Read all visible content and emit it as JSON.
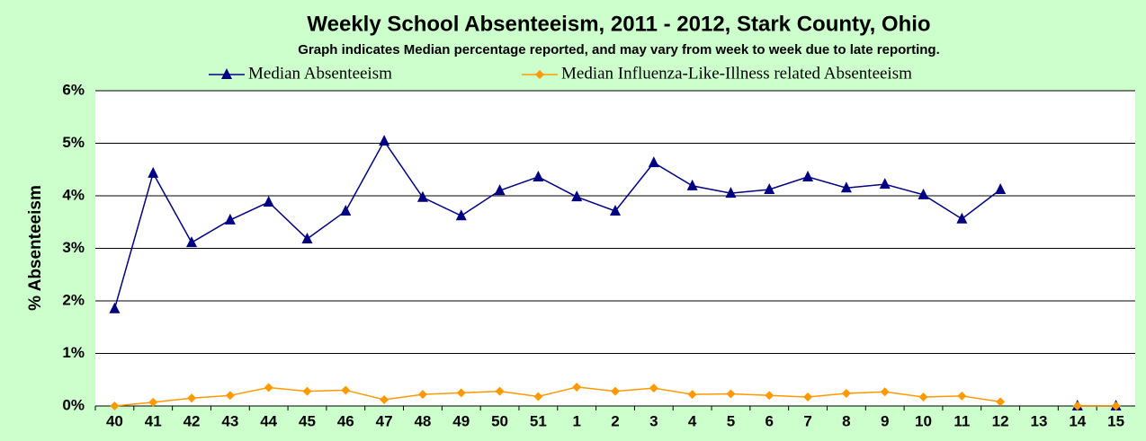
{
  "chart_data": {
    "type": "line",
    "title": "Weekly School Absenteeism, 2011 -  2012, Stark County, Ohio",
    "subtitle": "Graph indicates Median percentage reported, and may vary from week to week due to late reporting.",
    "y_label": "% Absenteeism",
    "categories": [
      "40",
      "41",
      "42",
      "43",
      "44",
      "45",
      "46",
      "47",
      "48",
      "49",
      "50",
      "51",
      "1",
      "2",
      "3",
      "4",
      "5",
      "6",
      "7",
      "8",
      "9",
      "10",
      "11",
      "12",
      "13",
      "14",
      "15"
    ],
    "series": [
      {
        "name": "Median Absenteeism",
        "color": "#000080",
        "marker": "triangle",
        "values": [
          1.85,
          4.43,
          3.11,
          3.54,
          3.88,
          3.18,
          3.71,
          5.04,
          3.97,
          3.62,
          4.1,
          4.36,
          3.98,
          3.71,
          4.63,
          4.19,
          4.05,
          4.12,
          4.36,
          4.15,
          4.22,
          4.02,
          3.56,
          4.12,
          null,
          0,
          0
        ]
      },
      {
        "name": "Median Influenza-Like-Illness related Absenteeism",
        "color": "#ff9900",
        "marker": "diamond",
        "values": [
          0,
          0.07,
          0.15,
          0.2,
          0.35,
          0.28,
          0.3,
          0.12,
          0.22,
          0.25,
          0.28,
          0.18,
          0.36,
          0.28,
          0.34,
          0.22,
          0.23,
          0.2,
          0.17,
          0.24,
          0.27,
          0.17,
          0.19,
          0.08,
          null,
          0,
          0
        ]
      }
    ],
    "ylim": [
      0,
      6
    ],
    "yticks": [
      {
        "value": 0,
        "label": "0%"
      },
      {
        "value": 1,
        "label": "1%"
      },
      {
        "value": 2,
        "label": "2%"
      },
      {
        "value": 3,
        "label": "3%"
      },
      {
        "value": 4,
        "label": "4%"
      },
      {
        "value": 5,
        "label": "5%"
      },
      {
        "value": 6,
        "label": "6%"
      }
    ],
    "grid": true,
    "legend": "top"
  }
}
